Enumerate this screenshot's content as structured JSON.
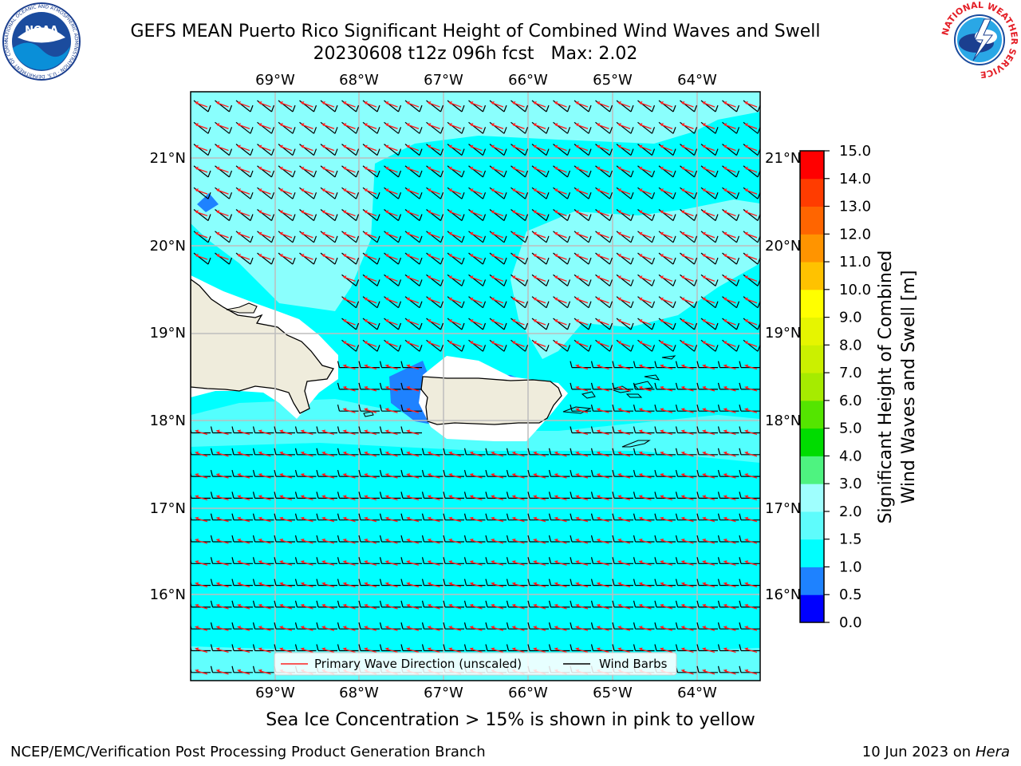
{
  "header": {
    "title_line1": "GEFS MEAN Puerto Rico Significant Height of Combined Wind Waves and Swell",
    "date": "20230608 t12z 096h fcst",
    "max_label": "Max: 2.02"
  },
  "logos": {
    "noaa": {
      "icon": "noaa-logo-icon",
      "text": "NOAA",
      "ring_text": "NATIONAL OCEANIC AND ATMOSPHERIC ADMINISTRATION · U.S. DEPARTMENT OF COMMERCE"
    },
    "nws": {
      "icon": "nws-logo-icon",
      "ring_text": "NATIONAL WEATHER SERVICE"
    }
  },
  "map": {
    "lon_labels": [
      "69°W",
      "68°W",
      "67°W",
      "66°W",
      "65°W",
      "64°W"
    ],
    "lat_labels": [
      "21°N",
      "20°N",
      "19°N",
      "18°N",
      "17°N",
      "16°N"
    ],
    "colors": {
      "ocean": "#00ffff",
      "light_ocean": "#8afffd",
      "land": "#efecdc",
      "blue": "#1e82ff",
      "dark_blue": "#0033ff",
      "grid": "#bdbdbd",
      "wave_arrow": "#ff2020"
    },
    "legend": {
      "wave_direction": "Primary Wave Direction (unscaled)",
      "wind_barbs": "Wind Barbs"
    }
  },
  "colorbar": {
    "title_line1": "Significant Height of Combined",
    "title_line2": "Wind Waves and Swell [m]",
    "ticks": [
      "0.0",
      "0.5",
      "1.0",
      "1.5",
      "2.0",
      "3.0",
      "4.0",
      "5.0",
      "6.0",
      "7.0",
      "8.0",
      "9.0",
      "10.0",
      "11.0",
      "12.0",
      "13.0",
      "14.0",
      "15.0"
    ],
    "colors": [
      "#0000ff",
      "#1e82ff",
      "#00ffff",
      "#5efcfc",
      "#9ffffe",
      "#4ef380",
      "#00dc00",
      "#54e500",
      "#a6eb00",
      "#cbf000",
      "#e6f500",
      "#ffff00",
      "#ffc200",
      "#ff9400",
      "#ff6500",
      "#ff3c00",
      "#ff0000"
    ]
  },
  "caption": "Sea Ice Concentration > 15% is shown in pink to yellow",
  "footer": {
    "left": "NCEP/EMC/Verification Post Processing Product Generation Branch",
    "right_date": "10 Jun 2023 on",
    "right_host": "Hera"
  }
}
